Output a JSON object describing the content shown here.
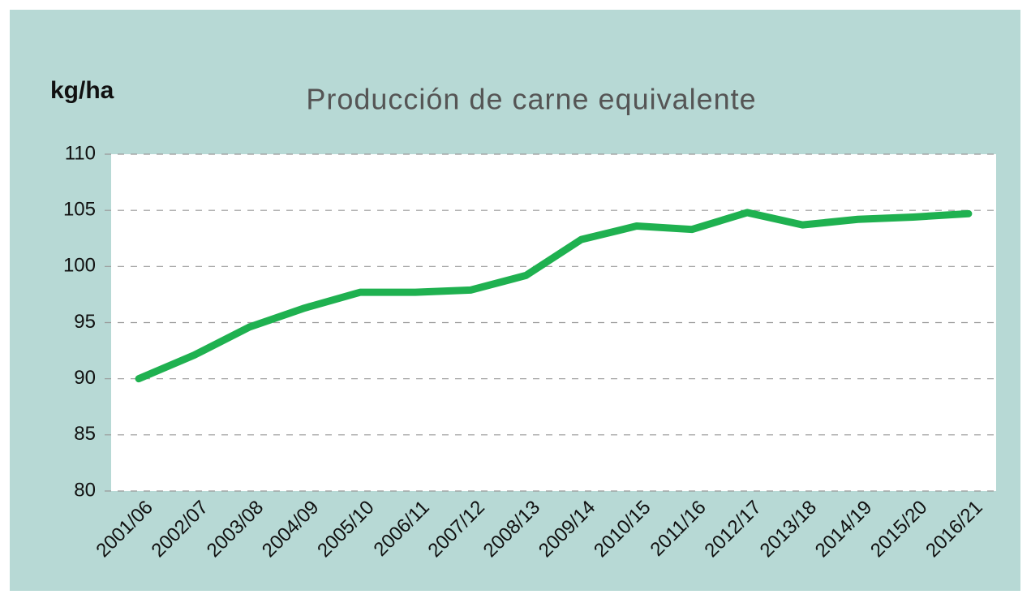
{
  "chart_data": {
    "type": "line",
    "title": "Producción de carne equivalente",
    "y_label": "kg/ha",
    "categories": [
      "2001/06",
      "2002/07",
      "2003/08",
      "2004/09",
      "2005/10",
      "2006/11",
      "2007/12",
      "2008/13",
      "2009/14",
      "2010/15",
      "2011/16",
      "2012/17",
      "2013/18",
      "2014/19",
      "2015/20",
      "2016/21"
    ],
    "values": [
      90.0,
      92.1,
      94.6,
      96.3,
      97.7,
      97.7,
      97.9,
      99.2,
      102.4,
      103.6,
      103.3,
      104.8,
      103.7,
      104.2,
      104.4,
      104.7
    ],
    "color": "#1fb150",
    "ylim": [
      80,
      110
    ],
    "yticks": [
      80,
      85,
      90,
      95,
      100,
      105,
      110
    ],
    "grid": true
  }
}
